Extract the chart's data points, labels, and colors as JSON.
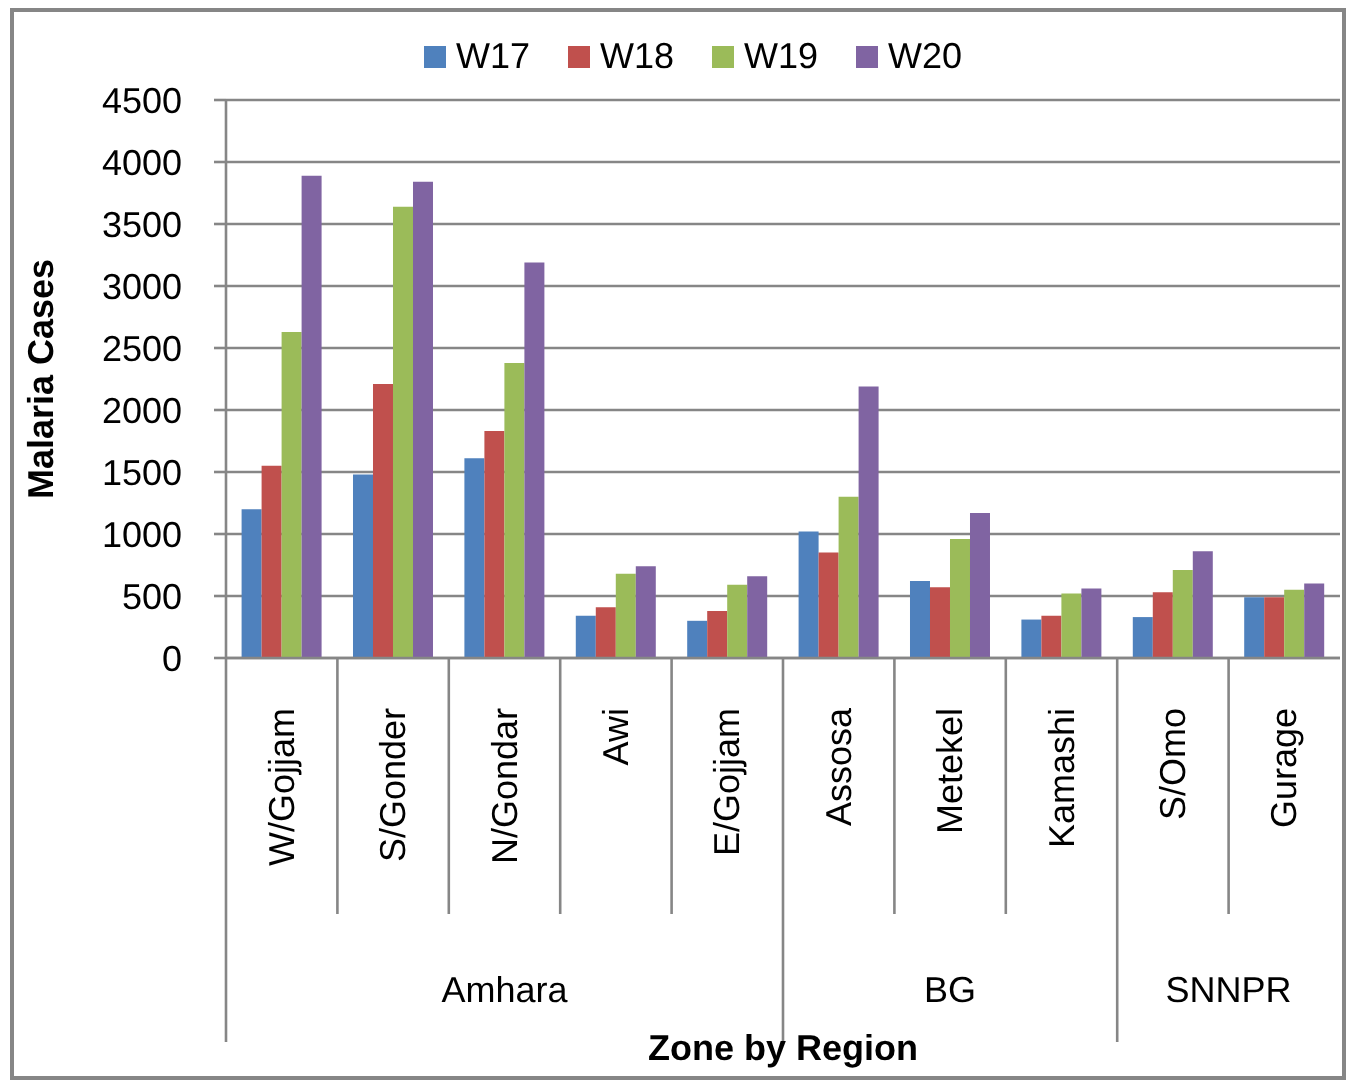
{
  "chart_data": {
    "type": "bar",
    "xlabel": "Zone by Region",
    "ylabel": "Malaria Cases",
    "categories": [
      "W/Gojjam",
      "S/Gonder",
      "N/Gondar",
      "Awi",
      "E/Gojjam",
      "Assosa",
      "Metekel",
      "Kamashi",
      "S/Omo",
      "Gurage"
    ],
    "series": [
      {
        "name": "W17",
        "color": "#4f81bd",
        "values": [
          1200,
          1480,
          1610,
          340,
          300,
          1020,
          620,
          310,
          330,
          490
        ]
      },
      {
        "name": "W18",
        "color": "#c0504d",
        "values": [
          1550,
          2210,
          1830,
          410,
          380,
          850,
          570,
          340,
          530,
          490
        ]
      },
      {
        "name": "W19",
        "color": "#9bbb59",
        "values": [
          2630,
          3640,
          2380,
          680,
          590,
          1300,
          960,
          520,
          710,
          550
        ]
      },
      {
        "name": "W20",
        "color": "#8064a2",
        "values": [
          3890,
          3840,
          3190,
          740,
          660,
          2190,
          1170,
          560,
          860,
          600
        ]
      }
    ],
    "annotations": [
      "Amhara",
      "BG",
      "SNNPR"
    ],
    "ylim": [
      0,
      4500
    ],
    "yticks": [
      0,
      500,
      1000,
      1500,
      2000,
      2500,
      3000,
      3500,
      4000,
      4500
    ],
    "grid": "y",
    "legend": "top"
  }
}
